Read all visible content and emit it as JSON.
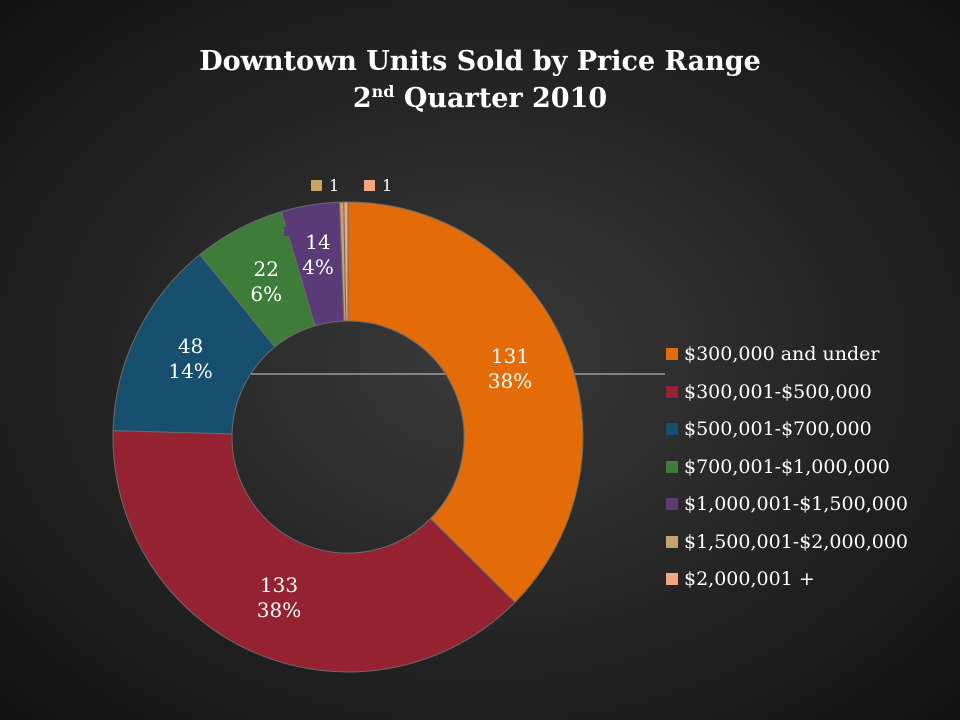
{
  "chart_data": {
    "type": "pie",
    "title": "Downtown Units Sold by Price Range",
    "subtitle": {
      "prefix": "2",
      "superscript": "nd",
      "suffix": " Quarter 2010"
    },
    "categories": [
      "$300,000 and under",
      "$300,001-$500,000",
      "$500,001-$700,000",
      "$700,001-$1,000,000",
      "$1,000,001-$1,500,000",
      "$1,500,001-$2,000,000",
      "$2,000,001 +"
    ],
    "values": [
      131,
      133,
      48,
      22,
      14,
      1,
      1
    ],
    "value_labels": [
      "131",
      "133",
      "48",
      "22",
      "14",
      "1",
      "1"
    ],
    "percent_labels": [
      "38%",
      "38%",
      "14%",
      "6%",
      "4%",
      "",
      ""
    ],
    "colors": [
      "#E36C09",
      "#952231",
      "#17506F",
      "#3E7C3A",
      "#5B3A78",
      "#C9A46A",
      "#F4A582"
    ],
    "donut": true,
    "legend_position": "right"
  }
}
